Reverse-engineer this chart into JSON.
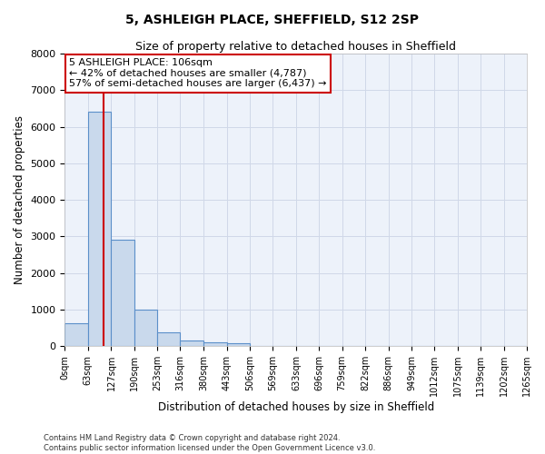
{
  "title": "5, ASHLEIGH PLACE, SHEFFIELD, S12 2SP",
  "subtitle": "Size of property relative to detached houses in Sheffield",
  "xlabel": "Distribution of detached houses by size in Sheffield",
  "ylabel": "Number of detached properties",
  "bar_color": "#c9d9ec",
  "bar_edge_color": "#5b8fc9",
  "grid_color": "#d0d8e8",
  "background_color": "#edf2fa",
  "vline_color": "#cc0000",
  "vline_x": 106,
  "annotation_line1": "5 ASHLEIGH PLACE: 106sqm",
  "annotation_line2": "← 42% of detached houses are smaller (4,787)",
  "annotation_line3": "57% of semi-detached houses are larger (6,437) →",
  "annotation_box_color": "#cc0000",
  "bin_edges": [
    0,
    63,
    127,
    190,
    253,
    316,
    380,
    443,
    506,
    569,
    633,
    696,
    759,
    822,
    886,
    949,
    1012,
    1075,
    1139,
    1202,
    1265
  ],
  "bar_heights": [
    620,
    6420,
    2920,
    1000,
    380,
    165,
    110,
    75,
    0,
    0,
    0,
    0,
    0,
    0,
    0,
    0,
    0,
    0,
    0,
    0
  ],
  "ylim": [
    0,
    8000
  ],
  "yticks": [
    0,
    1000,
    2000,
    3000,
    4000,
    5000,
    6000,
    7000,
    8000
  ],
  "tick_labels": [
    "0sqm",
    "63sqm",
    "127sqm",
    "190sqm",
    "253sqm",
    "316sqm",
    "380sqm",
    "443sqm",
    "506sqm",
    "569sqm",
    "633sqm",
    "696sqm",
    "759sqm",
    "822sqm",
    "886sqm",
    "949sqm",
    "1012sqm",
    "1075sqm",
    "1139sqm",
    "1202sqm",
    "1265sqm"
  ],
  "footer_text": "Contains HM Land Registry data © Crown copyright and database right 2024.\nContains public sector information licensed under the Open Government Licence v3.0.",
  "title_fontsize": 10,
  "subtitle_fontsize": 9,
  "xlabel_fontsize": 8.5,
  "ylabel_fontsize": 8.5,
  "annotation_fontsize": 8,
  "tick_fontsize": 7,
  "footer_fontsize": 6
}
